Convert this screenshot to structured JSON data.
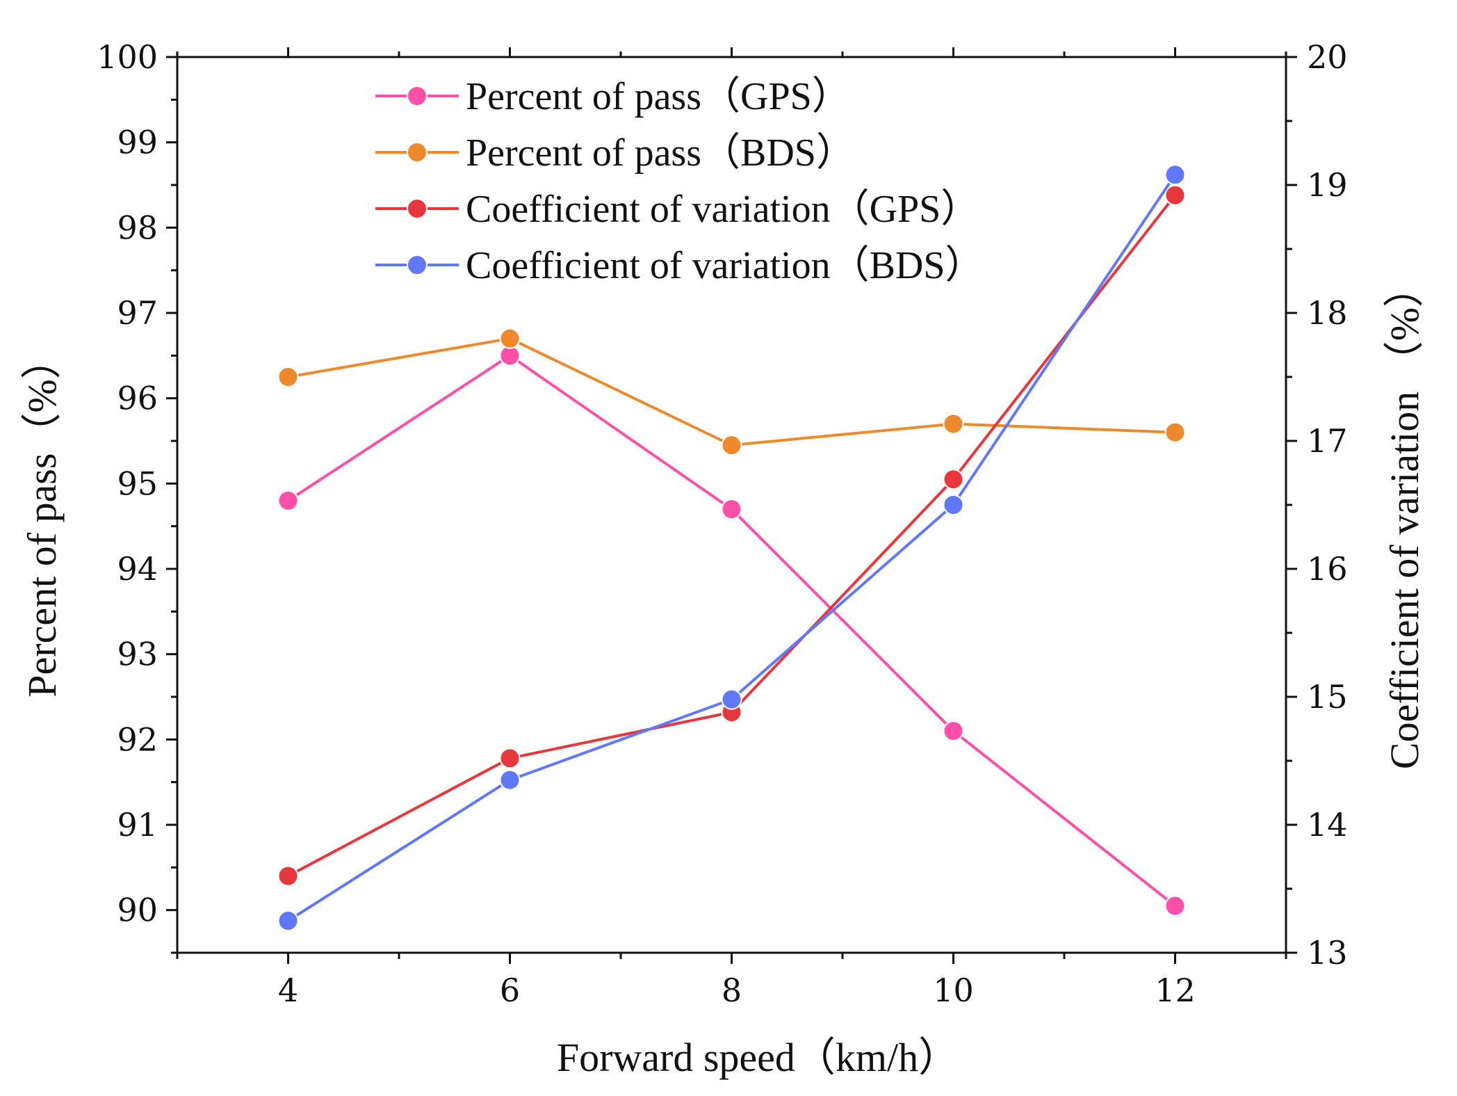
{
  "chart_data": {
    "type": "line",
    "title": "",
    "xlabel": "Forward speed（km/h）",
    "ylabel_left": "Percent of pass（%）",
    "ylabel_right": "Coefficient of variation （%）",
    "xlim": [
      3,
      13
    ],
    "ylim_left": [
      89.5,
      100
    ],
    "ylim_right": [
      13,
      20
    ],
    "x_ticks": [
      "4",
      "6",
      "8",
      "10",
      "12"
    ],
    "y_left_ticks": [
      "90",
      "91",
      "92",
      "93",
      "94",
      "95",
      "96",
      "97",
      "98",
      "99",
      "100"
    ],
    "y_right_ticks": [
      "13",
      "14",
      "15",
      "16",
      "17",
      "18",
      "19",
      "20"
    ],
    "x": [
      4,
      6,
      8,
      10,
      12
    ],
    "legend_position": "top-center",
    "series": [
      {
        "name": "Percent of pass（GPS）",
        "axis": "left",
        "color": "#ff4fa8",
        "values": [
          94.8,
          96.5,
          94.7,
          92.1,
          90.05
        ]
      },
      {
        "name": "Percent of pass（BDS）",
        "axis": "left",
        "color": "#ee8a2c",
        "values": [
          96.25,
          96.7,
          95.45,
          95.7,
          95.6
        ]
      },
      {
        "name": "Coefficient of variation（GPS）",
        "axis": "right",
        "color": "#e8373c",
        "values": [
          13.6,
          14.52,
          14.88,
          16.7,
          18.92
        ]
      },
      {
        "name": "Coefficient of variation（BDS）",
        "axis": "right",
        "color": "#5f78ff",
        "values": [
          13.25,
          14.35,
          14.98,
          16.5,
          19.08
        ]
      }
    ]
  }
}
